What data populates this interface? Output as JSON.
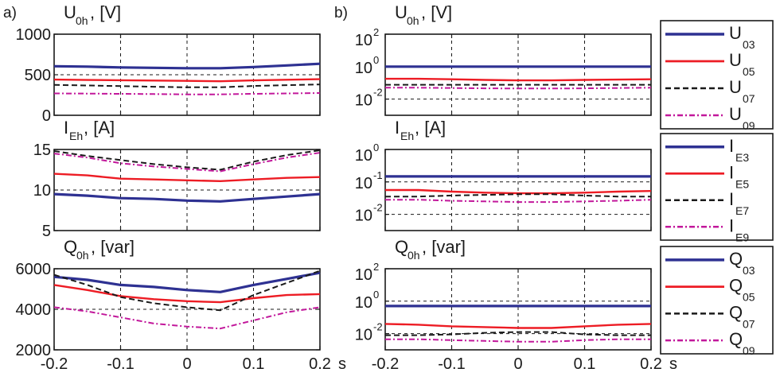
{
  "panel_labels": {
    "a": "a)",
    "b": "b)"
  },
  "x_axis": {
    "ticks": [
      "-0.2",
      "-0.1",
      "0",
      "0.1",
      "0.2"
    ],
    "unit": "s"
  },
  "colors": {
    "h3": "#2e3192",
    "h5": "#ed1c24",
    "h7": "#1a1a1a",
    "h9": "#c2189b"
  },
  "chart_data": [
    {
      "type": "line",
      "panel": "a",
      "title": {
        "main": "U",
        "sub": "0h",
        "rest": ", [V]"
      },
      "xlim": [
        -0.2,
        0.2
      ],
      "ylim": [
        0,
        1000
      ],
      "yscale": "linear",
      "yticks": [
        "0",
        "500",
        "1000"
      ],
      "x": [
        -0.2,
        -0.15,
        -0.1,
        -0.05,
        0,
        0.05,
        0.1,
        0.15,
        0.2
      ],
      "series": [
        {
          "values": [
            605,
            600,
            590,
            585,
            580,
            580,
            595,
            615,
            635
          ]
        },
        {
          "values": [
            440,
            435,
            432,
            428,
            425,
            420,
            430,
            438,
            445
          ]
        },
        {
          "values": [
            375,
            368,
            360,
            352,
            345,
            345,
            362,
            372,
            380
          ]
        },
        {
          "values": [
            270,
            268,
            265,
            262,
            258,
            258,
            265,
            270,
            275
          ]
        }
      ]
    },
    {
      "type": "line",
      "panel": "a",
      "title": {
        "main": "I",
        "sub": "Eh",
        "rest": ", [A]"
      },
      "xlim": [
        -0.2,
        0.2
      ],
      "ylim": [
        5,
        15
      ],
      "yscale": "linear",
      "yticks": [
        "5",
        "10",
        "15"
      ],
      "x": [
        -0.2,
        -0.15,
        -0.1,
        -0.05,
        0,
        0.05,
        0.1,
        0.15,
        0.2
      ],
      "series": [
        {
          "values": [
            9.5,
            9.3,
            9.0,
            8.9,
            8.7,
            8.6,
            8.9,
            9.2,
            9.5
          ]
        },
        {
          "values": [
            12.0,
            11.8,
            11.4,
            11.3,
            11.2,
            11.1,
            11.3,
            11.5,
            11.6
          ]
        },
        {
          "values": [
            14.8,
            14.2,
            13.7,
            13.2,
            12.8,
            12.5,
            13.5,
            14.3,
            14.9
          ]
        },
        {
          "values": [
            14.5,
            14.0,
            13.3,
            12.9,
            12.6,
            12.3,
            13.2,
            14.0,
            14.6
          ]
        }
      ]
    },
    {
      "type": "line",
      "panel": "a",
      "title": {
        "main": "Q",
        "sub": "0h",
        "rest": ", [var]"
      },
      "xlim": [
        -0.2,
        0.2
      ],
      "ylim": [
        2000,
        6000
      ],
      "yscale": "linear",
      "yticks": [
        "2000",
        "4000",
        "6000"
      ],
      "x": [
        -0.2,
        -0.15,
        -0.1,
        -0.05,
        0,
        0.05,
        0.1,
        0.15,
        0.2
      ],
      "series": [
        {
          "values": [
            5600,
            5450,
            5200,
            5100,
            4950,
            4850,
            5200,
            5500,
            5800
          ]
        },
        {
          "values": [
            5200,
            4950,
            4650,
            4500,
            4400,
            4350,
            4550,
            4700,
            4750
          ]
        },
        {
          "values": [
            5700,
            5200,
            4600,
            4300,
            4100,
            3950,
            4700,
            5300,
            5900
          ]
        },
        {
          "values": [
            4100,
            3900,
            3600,
            3300,
            3150,
            3050,
            3450,
            3850,
            4100
          ]
        }
      ]
    },
    {
      "type": "line",
      "panel": "b",
      "title": {
        "main": "U",
        "sub": "0h",
        "rest": ", [V]"
      },
      "xlim": [
        -0.2,
        0.2
      ],
      "ylim": [
        -3,
        2
      ],
      "yscale": "log",
      "yticks": [
        {
          "base": "10",
          "exp": "-2"
        },
        {
          "base": "10",
          "exp": "0"
        },
        {
          "base": "10",
          "exp": "2"
        }
      ],
      "x": [
        -0.2,
        -0.15,
        -0.1,
        -0.05,
        0,
        0.05,
        0.1,
        0.15,
        0.2
      ],
      "series": [
        {
          "values": [
            0,
            0,
            0,
            0,
            0,
            0,
            0,
            0,
            0
          ]
        },
        {
          "values": [
            -0.75,
            -0.75,
            -0.78,
            -0.82,
            -0.85,
            -0.85,
            -0.82,
            -0.8,
            -0.78
          ]
        },
        {
          "values": [
            -1.12,
            -1.12,
            -1.12,
            -1.12,
            -1.12,
            -1.12,
            -1.12,
            -1.12,
            -1.12
          ]
        },
        {
          "values": [
            -1.3,
            -1.3,
            -1.32,
            -1.34,
            -1.35,
            -1.35,
            -1.34,
            -1.32,
            -1.3
          ]
        }
      ]
    },
    {
      "type": "line",
      "panel": "b",
      "title": {
        "main": "I",
        "sub": "Eh",
        "rest": ", [A]"
      },
      "xlim": [
        -0.2,
        0.2
      ],
      "ylim": [
        -2.5,
        0
      ],
      "yscale": "log",
      "yticks": [
        {
          "base": "10",
          "exp": "-2"
        },
        {
          "base": "10",
          "exp": "-1"
        },
        {
          "base": "10",
          "exp": "0"
        }
      ],
      "x": [
        -0.2,
        -0.15,
        -0.1,
        -0.05,
        0,
        0.05,
        0.1,
        0.15,
        0.2
      ],
      "series": [
        {
          "values": [
            -0.83,
            -0.83,
            -0.83,
            -0.83,
            -0.83,
            -0.83,
            -0.83,
            -0.83,
            -0.83
          ]
        },
        {
          "values": [
            -1.25,
            -1.25,
            -1.3,
            -1.33,
            -1.35,
            -1.35,
            -1.33,
            -1.3,
            -1.28
          ]
        },
        {
          "values": [
            -1.45,
            -1.45,
            -1.42,
            -1.4,
            -1.38,
            -1.38,
            -1.42,
            -1.45,
            -1.45
          ]
        },
        {
          "values": [
            -1.55,
            -1.55,
            -1.58,
            -1.6,
            -1.62,
            -1.62,
            -1.6,
            -1.58,
            -1.55
          ]
        }
      ]
    },
    {
      "type": "line",
      "panel": "b",
      "title": {
        "main": "Q",
        "sub": "0h",
        "rest": ", [var]"
      },
      "xlim": [
        -0.2,
        0.2
      ],
      "ylim": [
        -3,
        2
      ],
      "yscale": "log",
      "yticks": [
        {
          "base": "10",
          "exp": "-2"
        },
        {
          "base": "10",
          "exp": "0"
        },
        {
          "base": "10",
          "exp": "2"
        }
      ],
      "x": [
        -0.2,
        -0.15,
        -0.1,
        -0.05,
        0,
        0.05,
        0.1,
        0.15,
        0.2
      ],
      "series": [
        {
          "values": [
            -0.3,
            -0.3,
            -0.3,
            -0.3,
            -0.3,
            -0.3,
            -0.3,
            -0.3,
            -0.3
          ]
        },
        {
          "values": [
            -1.4,
            -1.45,
            -1.55,
            -1.6,
            -1.65,
            -1.65,
            -1.55,
            -1.45,
            -1.4
          ]
        },
        {
          "values": [
            -2.1,
            -2.1,
            -2.05,
            -1.95,
            -1.9,
            -1.9,
            -2.05,
            -2.1,
            -2.1
          ]
        },
        {
          "values": [
            -2.35,
            -2.35,
            -2.4,
            -2.45,
            -2.5,
            -2.5,
            -2.4,
            -2.35,
            -2.35
          ]
        }
      ]
    }
  ],
  "legends": [
    {
      "entries": [
        {
          "main": "U",
          "sub": "03"
        },
        {
          "main": "U",
          "sub": "05"
        },
        {
          "main": "U",
          "sub": "07"
        },
        {
          "main": "U",
          "sub": "09"
        }
      ]
    },
    {
      "entries": [
        {
          "main": "I",
          "sub": "E3"
        },
        {
          "main": "I",
          "sub": "E5"
        },
        {
          "main": "I",
          "sub": "E7"
        },
        {
          "main": "I",
          "sub": "E9"
        }
      ]
    },
    {
      "entries": [
        {
          "main": "Q",
          "sub": "03"
        },
        {
          "main": "Q",
          "sub": "05"
        },
        {
          "main": "Q",
          "sub": "07"
        },
        {
          "main": "Q",
          "sub": "09"
        }
      ]
    }
  ]
}
